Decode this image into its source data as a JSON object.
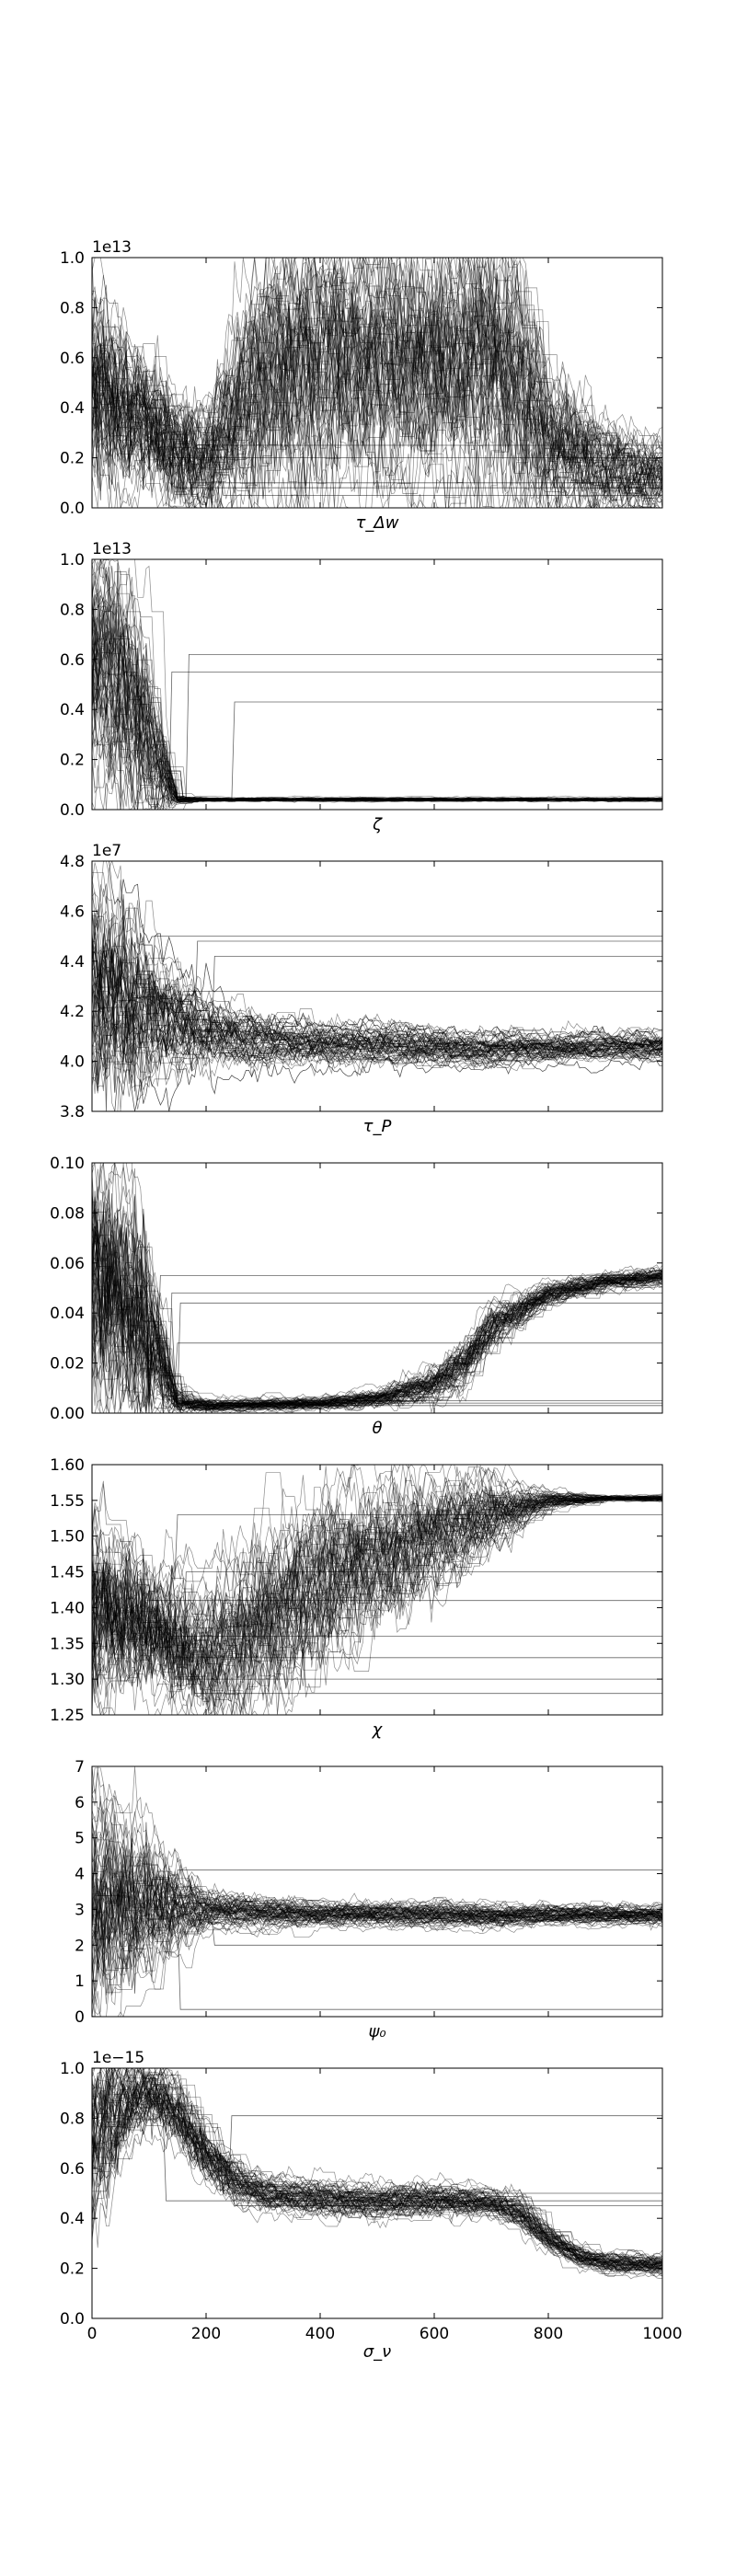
{
  "figure": {
    "background": "#ffffff",
    "line_color": "#000000"
  },
  "chart_data": [
    {
      "type": "line",
      "xlabel": "τ_Δw",
      "xlim": [
        0,
        1000
      ],
      "ylim": [
        0,
        1.0
      ],
      "offset_label": "1e13",
      "yticks": [
        0.0,
        0.2,
        0.4,
        0.6,
        0.8,
        1.0
      ],
      "ytick_labels": [
        "0.0",
        "0.2",
        "0.4",
        "0.6",
        "0.8",
        "1.0"
      ],
      "show_xticklabels": false,
      "description": "~100 MCMC walker traces (black, thin, semi-transparent)",
      "median_trace": {
        "x": [
          0,
          50,
          100,
          150,
          200,
          300,
          400,
          500,
          600,
          700,
          750,
          800,
          900,
          1000
        ],
        "y": [
          0.5,
          0.37,
          0.32,
          0.2,
          0.16,
          0.5,
          0.55,
          0.55,
          0.55,
          0.55,
          0.5,
          0.25,
          0.15,
          0.12
        ]
      },
      "spread": [
        0.35,
        0.25,
        0.2,
        0.18,
        0.2,
        0.4,
        0.4,
        0.4,
        0.4,
        0.4,
        0.4,
        0.25,
        0.15,
        0.12
      ],
      "stuck_walkers": [
        0.05,
        0.08,
        0.1,
        0.2,
        0.25
      ]
    },
    {
      "type": "line",
      "xlabel": "ζ",
      "xlim": [
        0,
        1000
      ],
      "ylim": [
        0,
        1.0
      ],
      "offset_label": "1e13",
      "yticks": [
        0.0,
        0.2,
        0.4,
        0.6,
        0.8,
        1.0
      ],
      "ytick_labels": [
        "0.0",
        "0.2",
        "0.4",
        "0.6",
        "0.8",
        "1.0"
      ],
      "show_xticklabels": false,
      "median_trace": {
        "x": [
          0,
          50,
          100,
          150,
          200,
          1000
        ],
        "y": [
          0.6,
          0.5,
          0.25,
          0.04,
          0.04,
          0.04
        ]
      },
      "spread": [
        0.35,
        0.35,
        0.25,
        0.01,
        0.005,
        0.005
      ],
      "stuck_walkers": [
        0.62,
        0.55,
        0.43
      ]
    },
    {
      "type": "line",
      "xlabel": "τ_P",
      "xlim": [
        0,
        1000
      ],
      "ylim": [
        3.8,
        4.8
      ],
      "offset_label": "1e7",
      "yticks": [
        3.8,
        4.0,
        4.2,
        4.4,
        4.6,
        4.8
      ],
      "ytick_labels": [
        "3.8",
        "4.0",
        "4.2",
        "4.4",
        "4.6",
        "4.8"
      ],
      "show_xticklabels": false,
      "median_trace": {
        "x": [
          0,
          100,
          200,
          300,
          400,
          500,
          600,
          700,
          800,
          900,
          1000
        ],
        "y": [
          4.3,
          4.2,
          4.12,
          4.08,
          4.07,
          4.07,
          4.06,
          4.05,
          4.05,
          4.06,
          4.06
        ]
      },
      "spread": [
        0.35,
        0.2,
        0.1,
        0.07,
        0.06,
        0.06,
        0.05,
        0.05,
        0.04,
        0.04,
        0.04
      ],
      "stuck_walkers": [
        4.5,
        4.48,
        4.42,
        4.28
      ]
    },
    {
      "type": "line",
      "xlabel": "θ",
      "xlim": [
        0,
        1000
      ],
      "ylim": [
        0.0,
        0.1
      ],
      "offset_label": "",
      "yticks": [
        0.0,
        0.02,
        0.04,
        0.06,
        0.08,
        0.1
      ],
      "ytick_labels": [
        "0.00",
        "0.02",
        "0.04",
        "0.06",
        "0.08",
        "0.10"
      ],
      "show_xticklabels": false,
      "median_trace": {
        "x": [
          0,
          50,
          100,
          150,
          200,
          400,
          500,
          600,
          650,
          700,
          800,
          900,
          1000
        ],
        "y": [
          0.055,
          0.05,
          0.03,
          0.005,
          0.003,
          0.004,
          0.006,
          0.012,
          0.02,
          0.035,
          0.048,
          0.053,
          0.055
        ]
      },
      "spread": [
        0.04,
        0.04,
        0.03,
        0.004,
        0.002,
        0.002,
        0.003,
        0.006,
        0.008,
        0.007,
        0.004,
        0.003,
        0.003
      ],
      "stuck_walkers": [
        0.055,
        0.048,
        0.044,
        0.028,
        0.005,
        0.004,
        0.003
      ]
    },
    {
      "type": "line",
      "xlabel": "χ",
      "xlim": [
        0,
        1000
      ],
      "ylim": [
        1.25,
        1.6
      ],
      "offset_label": "",
      "yticks": [
        1.25,
        1.3,
        1.35,
        1.4,
        1.45,
        1.5,
        1.55,
        1.6
      ],
      "ytick_labels": [
        "1.25",
        "1.30",
        "1.35",
        "1.40",
        "1.45",
        "1.50",
        "1.55",
        "1.60"
      ],
      "show_xticklabels": false,
      "median_trace": {
        "x": [
          0,
          100,
          200,
          300,
          400,
          500,
          600,
          700,
          800,
          900,
          1000
        ],
        "y": [
          1.4,
          1.37,
          1.33,
          1.38,
          1.43,
          1.47,
          1.5,
          1.53,
          1.55,
          1.553,
          1.553
        ]
      },
      "spread": [
        0.1,
        0.07,
        0.07,
        0.09,
        0.09,
        0.08,
        0.06,
        0.04,
        0.01,
        0.003,
        0.003
      ],
      "stuck_walkers": [
        1.53,
        1.45,
        1.41,
        1.36,
        1.33,
        1.3,
        1.28
      ]
    },
    {
      "type": "line",
      "xlabel": "ψ₀",
      "xlim": [
        0,
        1000
      ],
      "ylim": [
        0,
        7
      ],
      "offset_label": "",
      "yticks": [
        0,
        1,
        2,
        3,
        4,
        5,
        6,
        7
      ],
      "ytick_labels": [
        "0",
        "1",
        "2",
        "3",
        "4",
        "5",
        "6",
        "7"
      ],
      "show_xticklabels": false,
      "median_trace": {
        "x": [
          0,
          100,
          200,
          300,
          400,
          500,
          600,
          700,
          800,
          900,
          1000
        ],
        "y": [
          3.0,
          3.0,
          2.95,
          2.9,
          2.85,
          2.85,
          2.85,
          2.8,
          2.85,
          2.85,
          2.85
        ]
      },
      "spread": [
        2.5,
        1.4,
        0.4,
        0.3,
        0.25,
        0.25,
        0.25,
        0.25,
        0.2,
        0.2,
        0.2
      ],
      "stuck_walkers": [
        4.1,
        2.0,
        0.2
      ]
    },
    {
      "type": "line",
      "xlabel": "σ_ν",
      "xlim": [
        0,
        1000
      ],
      "ylim": [
        0,
        1.0
      ],
      "offset_label": "1e−15",
      "yticks": [
        0.0,
        0.2,
        0.4,
        0.6,
        0.8,
        1.0
      ],
      "ytick_labels": [
        "0.0",
        "0.2",
        "0.4",
        "0.6",
        "0.8",
        "1.0"
      ],
      "xticks": [
        0,
        200,
        400,
        600,
        800,
        1000
      ],
      "xtick_labels": [
        "0",
        "200",
        "400",
        "600",
        "800",
        "1000"
      ],
      "show_xticklabels": true,
      "median_trace": {
        "x": [
          0,
          50,
          100,
          150,
          200,
          250,
          300,
          400,
          500,
          600,
          700,
          750,
          800,
          850,
          900,
          1000
        ],
        "y": [
          0.7,
          0.85,
          0.9,
          0.82,
          0.65,
          0.55,
          0.5,
          0.48,
          0.47,
          0.47,
          0.46,
          0.42,
          0.32,
          0.25,
          0.22,
          0.21
        ]
      },
      "spread": [
        0.3,
        0.15,
        0.1,
        0.1,
        0.08,
        0.06,
        0.05,
        0.05,
        0.05,
        0.05,
        0.04,
        0.05,
        0.04,
        0.03,
        0.03,
        0.03
      ],
      "stuck_walkers": [
        0.81,
        0.5,
        0.47,
        0.45
      ]
    }
  ]
}
